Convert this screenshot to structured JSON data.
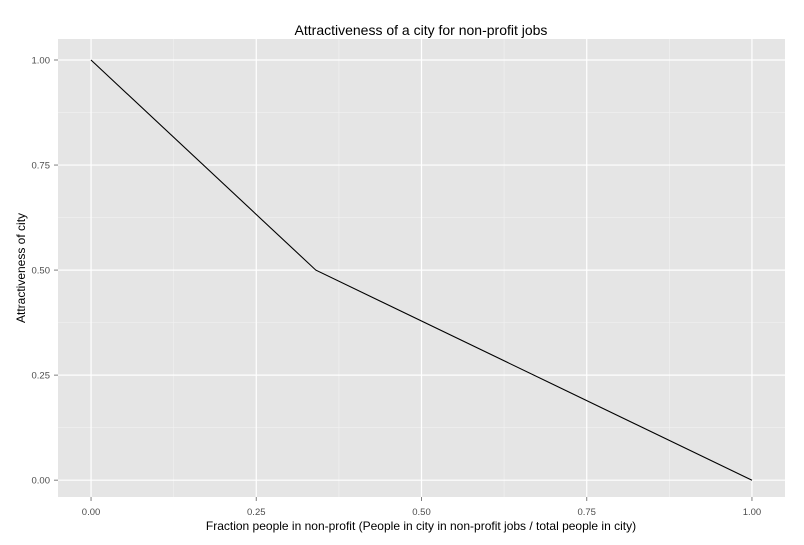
{
  "chart_data": {
    "type": "line",
    "title": "Attractiveness of a city for non-profit jobs",
    "xlabel": "Fraction people in non-profit (People in city in non-profit jobs / total people in city)",
    "ylabel": "Attractiveness of city",
    "xlim": [
      -0.05,
      1.05
    ],
    "ylim": [
      -0.04,
      1.05
    ],
    "x_ticks": [
      0.0,
      0.25,
      0.5,
      0.75,
      1.0
    ],
    "x_tick_labels": [
      "0.00",
      "0.25",
      "0.50",
      "0.75",
      "1.00"
    ],
    "y_ticks": [
      0.0,
      0.25,
      0.5,
      0.75,
      1.0
    ],
    "y_tick_labels": [
      "0.00",
      "0.25",
      "0.50",
      "0.75",
      "1.00"
    ],
    "grid": true,
    "legend": "none",
    "series": [
      {
        "x": [
          0.0,
          0.34,
          1.0
        ],
        "y": [
          1.0,
          0.5,
          0.0
        ]
      }
    ]
  },
  "colors": {
    "panel_background": "#e5e5e5",
    "grid_major": "#ffffff",
    "grid_minor": "#f2f2f2",
    "line": "#000000"
  }
}
